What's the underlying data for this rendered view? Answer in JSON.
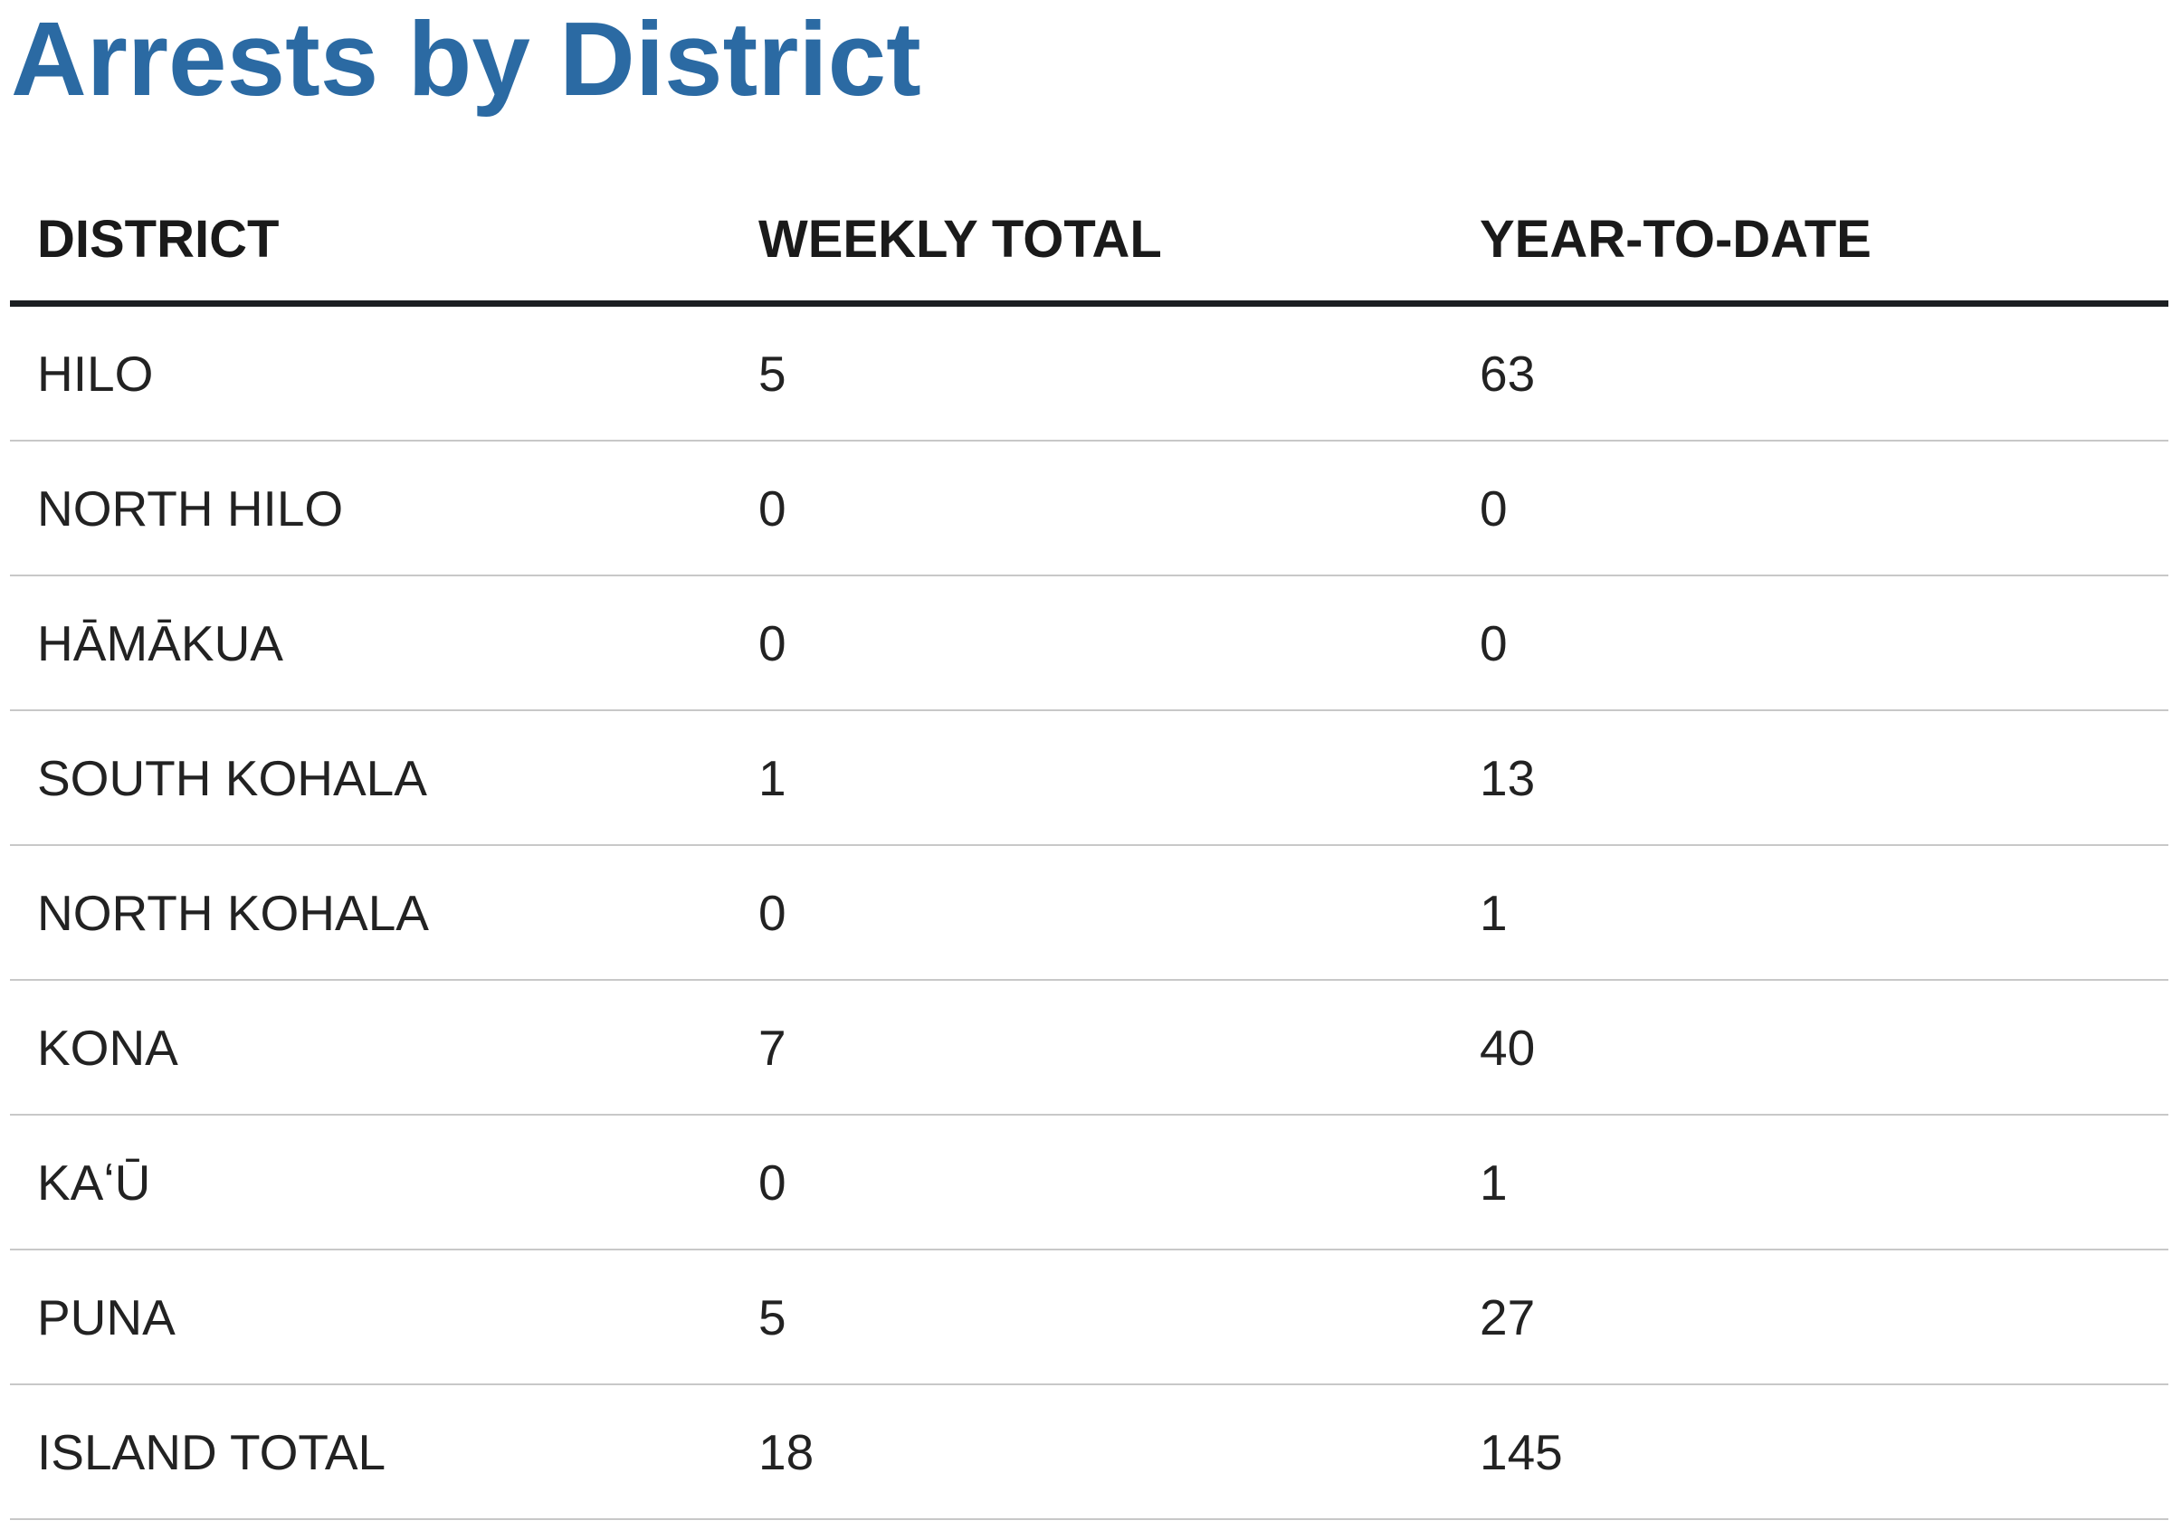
{
  "title": "Arrests by District",
  "table": {
    "headers": [
      "DISTRICT",
      "WEEKLY TOTAL",
      "YEAR-TO-DATE"
    ],
    "rows": [
      [
        "HILO",
        "5",
        "63"
      ],
      [
        "NORTH HILO",
        "0",
        "0"
      ],
      [
        "HĀMĀKUA",
        "0",
        "0"
      ],
      [
        "SOUTH KOHALA",
        "1",
        "13"
      ],
      [
        "NORTH KOHALA",
        "0",
        "1"
      ],
      [
        "KONA",
        "7",
        "40"
      ],
      [
        "KAʻŪ",
        "0",
        "1"
      ],
      [
        "PUNA",
        "5",
        "27"
      ],
      [
        "ISLAND TOTAL",
        "18",
        "145"
      ]
    ]
  },
  "colors": {
    "title": "#2b6aa3",
    "header_rule": "#1c1f22",
    "row_rule": "#c8c8c8"
  }
}
